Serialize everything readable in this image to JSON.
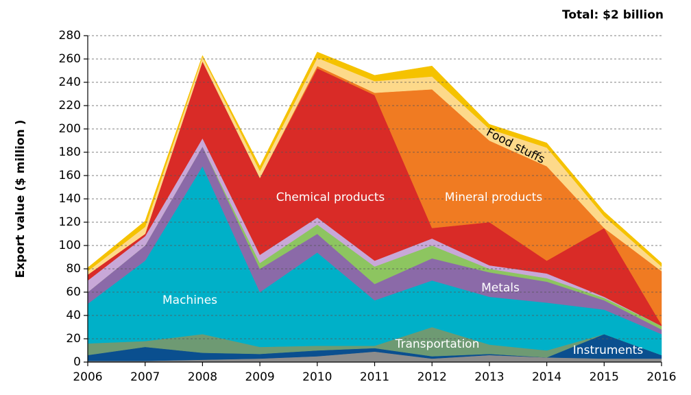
{
  "chart_data": {
    "type": "area",
    "stacked": true,
    "title": "Total: $2 billion",
    "y_label": "Export value ($ million )",
    "x": [
      2006,
      2007,
      2008,
      2009,
      2010,
      2011,
      2012,
      2013,
      2014,
      2015,
      2016
    ],
    "xlim": [
      2006,
      2016
    ],
    "xticks": [
      2006,
      2007,
      2008,
      2009,
      2010,
      2011,
      2012,
      2013,
      2014,
      2015,
      2016
    ],
    "ylim": [
      0,
      280
    ],
    "yticks": [
      0,
      20,
      40,
      60,
      80,
      100,
      120,
      140,
      160,
      180,
      200,
      220,
      240,
      260,
      280
    ],
    "grid": true,
    "series": [
      {
        "color": "#8c8c8c",
        "values": [
          1,
          1,
          2,
          3,
          5,
          9,
          3,
          6,
          4,
          3,
          3
        ]
      },
      {
        "name": "Instruments",
        "color": "#0a4f8f",
        "values": [
          5,
          12,
          6,
          4,
          5,
          3,
          2,
          1,
          0,
          21,
          3
        ]
      },
      {
        "name": "Transportation",
        "color": "#6e9a73",
        "values": [
          10,
          5,
          16,
          6,
          4,
          2,
          25,
          8,
          6,
          0,
          0
        ]
      },
      {
        "name": "Machines",
        "color": "#00b0c8",
        "values": [
          34,
          69,
          144,
          47,
          80,
          39,
          40,
          41,
          41,
          21,
          18
        ]
      },
      {
        "name": "Metals",
        "color": "#8b6aa8",
        "values": [
          10,
          13,
          17,
          20,
          16,
          14,
          19,
          21,
          18,
          8,
          4
        ]
      },
      {
        "color": "#8dc560",
        "values": [
          0,
          0,
          0,
          5,
          8,
          15,
          11,
          3,
          3,
          2,
          3
        ]
      },
      {
        "color": "#c8a8d8",
        "values": [
          10,
          8,
          7,
          7,
          6,
          5,
          6,
          3,
          4,
          1,
          0
        ]
      },
      {
        "name": "Chemical products",
        "color": "#d92b27",
        "values": [
          5,
          2,
          66,
          66,
          128,
          142,
          9,
          37,
          11,
          59,
          1
        ]
      },
      {
        "name": "Mineral products",
        "color": "#f07b22",
        "values": [
          0,
          0,
          0,
          0,
          2,
          2,
          119,
          70,
          81,
          0,
          46
        ]
      },
      {
        "color": "#fdd98a",
        "values": [
          3,
          6,
          4,
          6,
          7,
          10,
          11,
          10,
          16,
          10,
          4
        ]
      },
      {
        "name": "Food stuffs",
        "color": "#f5c200",
        "values": [
          3,
          5,
          1,
          4,
          5,
          5,
          9,
          4,
          4,
          4,
          3
        ]
      }
    ]
  }
}
